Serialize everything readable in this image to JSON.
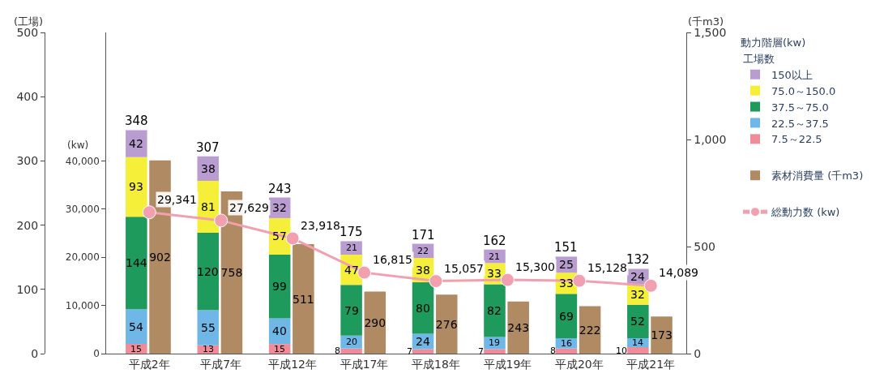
{
  "chart_data": {
    "type": "bar",
    "stacked": true,
    "categories": [
      "平成2年",
      "平成7年",
      "平成12年",
      "平成17年",
      "平成18年",
      "平成19年",
      "平成20年",
      "平成21年"
    ],
    "series": [
      {
        "name": "7.5～22.5",
        "color": "#f08c9a",
        "values": [
          15,
          13,
          15,
          8,
          7,
          7,
          8,
          10
        ]
      },
      {
        "name": "22.5～37.5",
        "color": "#6fb7e6",
        "values": [
          54,
          55,
          40,
          20,
          24,
          19,
          16,
          14
        ]
      },
      {
        "name": "37.5～75.0",
        "color": "#1e9a5c",
        "values": [
          144,
          120,
          99,
          79,
          80,
          82,
          69,
          52
        ]
      },
      {
        "name": "75.0～150.0",
        "color": "#f5ef3a",
        "values": [
          93,
          81,
          57,
          47,
          38,
          33,
          33,
          32
        ]
      },
      {
        "name": "150以上",
        "color": "#b99dd0",
        "values": [
          42,
          38,
          32,
          21,
          22,
          21,
          25,
          24
        ]
      },
      {
        "name": "素材消費量",
        "type": "bar",
        "axis": "y2",
        "color": "#b08a63",
        "values": [
          902,
          758,
          511,
          290,
          276,
          243,
          222,
          173
        ]
      },
      {
        "name": "総動力数",
        "type": "line",
        "axis": "y3",
        "color": "#f2a0b0",
        "marker": "circle",
        "values": [
          29341,
          27629,
          23918,
          16815,
          15057,
          15300,
          15128,
          14089
        ],
        "value_labels": [
          "29,341",
          "27,629",
          "23,918",
          "16,815",
          "15,057",
          "15,300",
          "15,128",
          "14,089"
        ]
      }
    ],
    "totals": [
      "348",
      "307",
      "243",
      "175",
      "171",
      "162",
      "151",
      "132"
    ],
    "data_labels": true,
    "ylabel": "(工場)",
    "y2label": "(千m3)",
    "y3label": "(kw)",
    "legend_title": "動力階層(kw)",
    "annotations": [
      "工場数",
      "(千m3)",
      "(kw)"
    ],
    "ylim": [
      0,
      500
    ],
    "yticks": [
      0,
      100,
      200,
      300,
      400,
      500
    ],
    "y2lim": [
      0,
      1500
    ],
    "y2ticks": [
      0,
      {
        "value": 500,
        "label": "500"
      },
      {
        "value": 1000,
        "label": "1,000"
      },
      {
        "value": 1500,
        "label": "1,500"
      }
    ],
    "y3lim": [
      0,
      66667
    ],
    "y3ticks": [
      0,
      {
        "value": 10000,
        "label": "10,000"
      },
      {
        "value": 20000,
        "label": "20,000"
      },
      {
        "value": 30000,
        "label": "30,000"
      },
      {
        "value": 40000,
        "label": "40,000"
      }
    ],
    "legend": "right"
  }
}
